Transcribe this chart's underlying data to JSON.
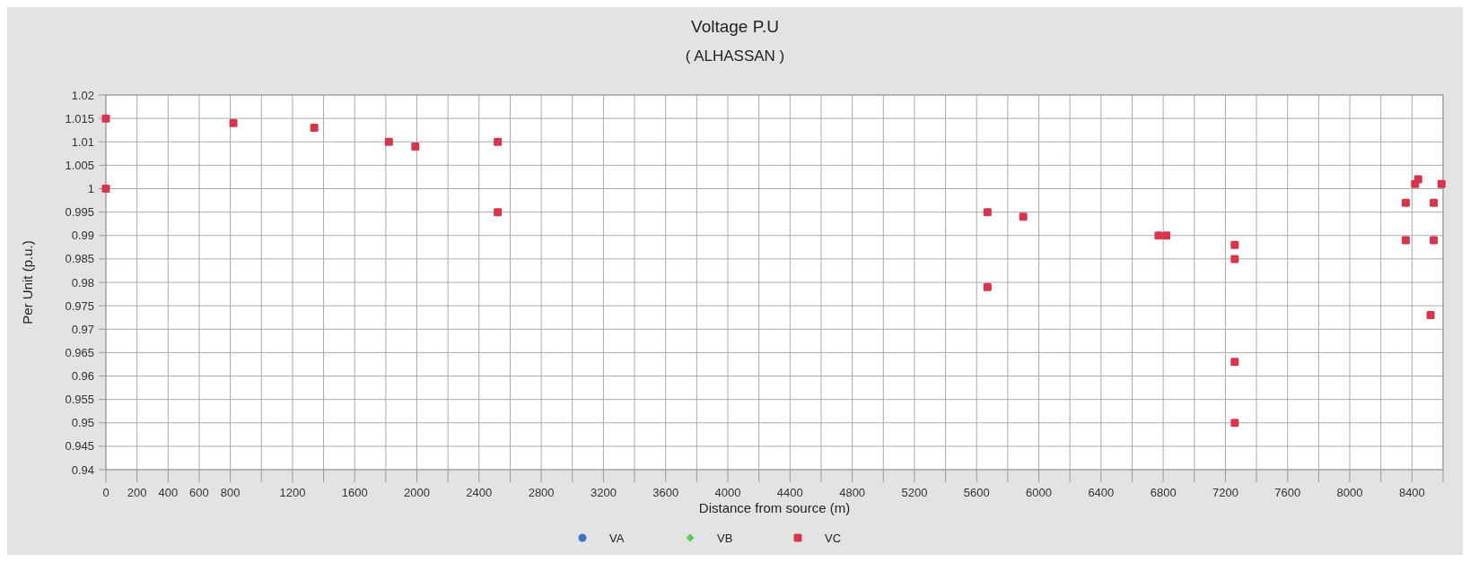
{
  "chart_data": {
    "type": "scatter",
    "title": "Voltage P.U",
    "subtitle": "( ALHASSAN )",
    "xlabel": "Distance from source (m)",
    "ylabel": "Per Unit (p.u.)",
    "x": [
      0,
      0,
      820,
      1340,
      1820,
      1990,
      2520,
      2520,
      5670,
      5670,
      5900,
      6770,
      6820,
      7260,
      7260,
      7260,
      7260,
      8360,
      8360,
      8420,
      8440,
      8540,
      8540,
      8520,
      8590
    ],
    "series": [
      {
        "name": "VA",
        "color": "#4472c4",
        "marker": "circle",
        "values": [
          null,
          null,
          null,
          null,
          null,
          null,
          null,
          null,
          null,
          null,
          null,
          null,
          null,
          null,
          null,
          null,
          null,
          null,
          null,
          null,
          null,
          null,
          null,
          null,
          null
        ]
      },
      {
        "name": "VB",
        "color": "#5cc85c",
        "marker": "diamond",
        "values": [
          null,
          null,
          null,
          null,
          null,
          null,
          null,
          null,
          null,
          null,
          null,
          null,
          null,
          null,
          null,
          null,
          null,
          null,
          null,
          null,
          null,
          null,
          null,
          null,
          null
        ]
      },
      {
        "name": "VC",
        "color": "#d8344a",
        "marker": "square",
        "values": [
          1.015,
          1.0,
          1.014,
          1.013,
          1.01,
          1.009,
          1.01,
          0.995,
          0.995,
          0.979,
          0.994,
          0.99,
          0.99,
          0.988,
          0.985,
          0.963,
          0.95,
          0.997,
          0.989,
          1.001,
          1.002,
          0.997,
          0.989,
          0.973,
          1.001
        ]
      }
    ],
    "xlim": [
      0,
      8600
    ],
    "xticks": [
      0,
      200,
      400,
      600,
      800,
      {
        "value": 1000,
        "label": null
      },
      1200,
      {
        "value": 1400,
        "label": null
      },
      1600,
      {
        "value": 1800,
        "label": null
      },
      2000,
      {
        "value": 2200,
        "label": null
      },
      2400,
      {
        "value": 2600,
        "label": null
      },
      2800,
      {
        "value": 3000,
        "label": null
      },
      3200,
      {
        "value": 3400,
        "label": null
      },
      3600,
      {
        "value": 3800,
        "label": null
      },
      4000,
      {
        "value": 4200,
        "label": null
      },
      4400,
      {
        "value": 4600,
        "label": null
      },
      4800,
      {
        "value": 5000,
        "label": null
      },
      5200,
      {
        "value": 5400,
        "label": null
      },
      5600,
      {
        "value": 5800,
        "label": null
      },
      6000,
      {
        "value": 6200,
        "label": null
      },
      6400,
      {
        "value": 6600,
        "label": null
      },
      6800,
      {
        "value": 7000,
        "label": null
      },
      7200,
      {
        "value": 7400,
        "label": null
      },
      7600,
      {
        "value": 7800,
        "label": null
      },
      8000,
      {
        "value": 8200,
        "label": null
      },
      8400,
      {
        "value": 8600,
        "label": null
      }
    ],
    "ylim": [
      0.94,
      1.02
    ],
    "yticks": [
      0.94,
      0.945,
      0.95,
      0.955,
      0.96,
      0.965,
      0.97,
      0.975,
      0.98,
      0.985,
      0.99,
      0.995,
      1,
      1.005,
      1.01,
      1.015,
      1.02
    ],
    "grid": true,
    "legend": "bottom"
  }
}
